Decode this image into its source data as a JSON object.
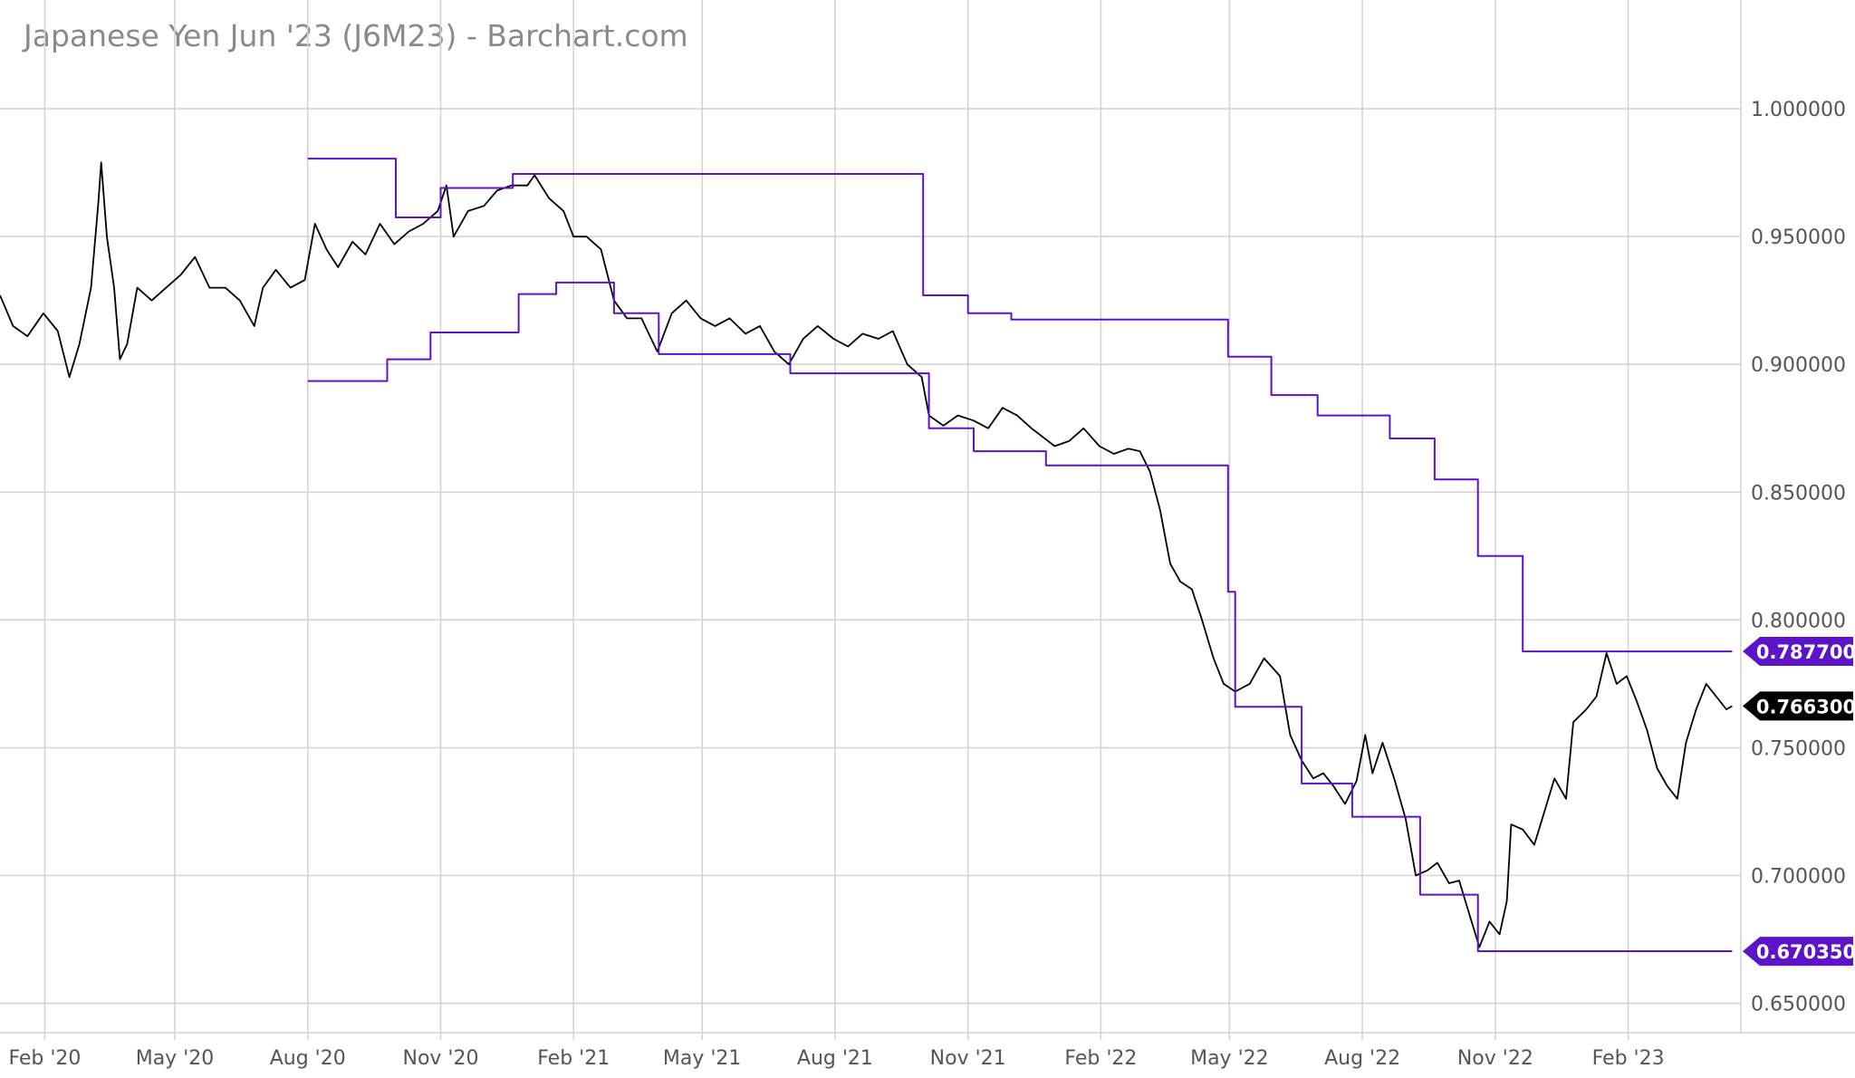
{
  "header": {
    "title": "Japanese Yen Jun '23 (J6M23) - Barchart.com"
  },
  "colors": {
    "price": "#000000",
    "channel": "#5b14c8",
    "price_tag": "#000000",
    "channel_tag": "#5b14c8",
    "grid": "#d4d4d4"
  },
  "chart_data": {
    "type": "line",
    "title": "Japanese Yen Jun '23 (J6M23) - Barchart.com",
    "xlabel": "",
    "ylabel": "",
    "ylim": [
      0.6385,
      1.0135
    ],
    "xlim": [
      "2020-01-01",
      "2023-04-20"
    ],
    "grid": true,
    "y_ticks": [
      "0.650000",
      "0.700000",
      "0.750000",
      "0.800000",
      "0.850000",
      "0.900000",
      "0.950000",
      "1.000000"
    ],
    "x_ticks": [
      {
        "label": "Feb '20",
        "date": "2020-02-01"
      },
      {
        "label": "May '20",
        "date": "2020-05-01"
      },
      {
        "label": "Aug '20",
        "date": "2020-08-01"
      },
      {
        "label": "Nov '20",
        "date": "2020-11-01"
      },
      {
        "label": "Feb '21",
        "date": "2021-02-01"
      },
      {
        "label": "May '21",
        "date": "2021-05-01"
      },
      {
        "label": "Aug '21",
        "date": "2021-08-01"
      },
      {
        "label": "Nov '21",
        "date": "2021-11-01"
      },
      {
        "label": "Feb '22",
        "date": "2022-02-01"
      },
      {
        "label": "May '22",
        "date": "2022-05-01"
      },
      {
        "label": "Aug '22",
        "date": "2022-08-01"
      },
      {
        "label": "Nov '22",
        "date": "2022-11-01"
      },
      {
        "label": "Feb '23",
        "date": "2023-02-01"
      }
    ],
    "series": [
      {
        "color": "#000000",
        "step": false,
        "points": [
          [
            "2020-01-01",
            0.927
          ],
          [
            "2020-01-10",
            0.915
          ],
          [
            "2020-01-20",
            0.911
          ],
          [
            "2020-01-31",
            0.92
          ],
          [
            "2020-02-10",
            0.913
          ],
          [
            "2020-02-18",
            0.895
          ],
          [
            "2020-02-25",
            0.908
          ],
          [
            "2020-03-04",
            0.93
          ],
          [
            "2020-03-09",
            0.963
          ],
          [
            "2020-03-11",
            0.979
          ],
          [
            "2020-03-15",
            0.95
          ],
          [
            "2020-03-20",
            0.93
          ],
          [
            "2020-03-24",
            0.902
          ],
          [
            "2020-03-29",
            0.908
          ],
          [
            "2020-04-05",
            0.93
          ],
          [
            "2020-04-15",
            0.925
          ],
          [
            "2020-04-25",
            0.93
          ],
          [
            "2020-05-05",
            0.935
          ],
          [
            "2020-05-15",
            0.942
          ],
          [
            "2020-05-25",
            0.93
          ],
          [
            "2020-06-05",
            0.93
          ],
          [
            "2020-06-15",
            0.925
          ],
          [
            "2020-06-25",
            0.915
          ],
          [
            "2020-07-01",
            0.93
          ],
          [
            "2020-07-10",
            0.937
          ],
          [
            "2020-07-20",
            0.93
          ],
          [
            "2020-07-30",
            0.933
          ],
          [
            "2020-08-06",
            0.955
          ],
          [
            "2020-08-14",
            0.945
          ],
          [
            "2020-08-22",
            0.938
          ],
          [
            "2020-09-01",
            0.948
          ],
          [
            "2020-09-10",
            0.943
          ],
          [
            "2020-09-20",
            0.955
          ],
          [
            "2020-09-30",
            0.947
          ],
          [
            "2020-10-10",
            0.952
          ],
          [
            "2020-10-20",
            0.955
          ],
          [
            "2020-10-30",
            0.96
          ],
          [
            "2020-11-05",
            0.97
          ],
          [
            "2020-11-10",
            0.95
          ],
          [
            "2020-11-20",
            0.96
          ],
          [
            "2020-12-01",
            0.962
          ],
          [
            "2020-12-10",
            0.968
          ],
          [
            "2020-12-20",
            0.97
          ],
          [
            "2020-12-31",
            0.97
          ],
          [
            "2021-01-05",
            0.974
          ],
          [
            "2021-01-15",
            0.965
          ],
          [
            "2021-01-25",
            0.96
          ],
          [
            "2021-02-01",
            0.95
          ],
          [
            "2021-02-10",
            0.95
          ],
          [
            "2021-02-20",
            0.945
          ],
          [
            "2021-03-01",
            0.925
          ],
          [
            "2021-03-10",
            0.918
          ],
          [
            "2021-03-20",
            0.918
          ],
          [
            "2021-03-31",
            0.905
          ],
          [
            "2021-04-10",
            0.92
          ],
          [
            "2021-04-20",
            0.925
          ],
          [
            "2021-04-30",
            0.918
          ],
          [
            "2021-05-10",
            0.915
          ],
          [
            "2021-05-20",
            0.918
          ],
          [
            "2021-05-31",
            0.912
          ],
          [
            "2021-06-10",
            0.915
          ],
          [
            "2021-06-20",
            0.905
          ],
          [
            "2021-06-30",
            0.9
          ],
          [
            "2021-07-10",
            0.91
          ],
          [
            "2021-07-20",
            0.915
          ],
          [
            "2021-07-31",
            0.91
          ],
          [
            "2021-08-10",
            0.907
          ],
          [
            "2021-08-20",
            0.912
          ],
          [
            "2021-08-31",
            0.91
          ],
          [
            "2021-09-10",
            0.913
          ],
          [
            "2021-09-20",
            0.9
          ],
          [
            "2021-09-30",
            0.895
          ],
          [
            "2021-10-05",
            0.88
          ],
          [
            "2021-10-15",
            0.876
          ],
          [
            "2021-10-25",
            0.88
          ],
          [
            "2021-11-05",
            0.878
          ],
          [
            "2021-11-15",
            0.875
          ],
          [
            "2021-11-25",
            0.883
          ],
          [
            "2021-12-05",
            0.88
          ],
          [
            "2021-12-15",
            0.875
          ],
          [
            "2021-12-31",
            0.868
          ],
          [
            "2022-01-10",
            0.87
          ],
          [
            "2022-01-20",
            0.875
          ],
          [
            "2022-01-31",
            0.868
          ],
          [
            "2022-02-10",
            0.865
          ],
          [
            "2022-02-20",
            0.867
          ],
          [
            "2022-02-28",
            0.866
          ],
          [
            "2022-03-07",
            0.858
          ],
          [
            "2022-03-14",
            0.843
          ],
          [
            "2022-03-21",
            0.822
          ],
          [
            "2022-03-28",
            0.815
          ],
          [
            "2022-04-05",
            0.812
          ],
          [
            "2022-04-12",
            0.8
          ],
          [
            "2022-04-20",
            0.785
          ],
          [
            "2022-04-27",
            0.775
          ],
          [
            "2022-05-05",
            0.772
          ],
          [
            "2022-05-15",
            0.775
          ],
          [
            "2022-05-25",
            0.785
          ],
          [
            "2022-06-05",
            0.778
          ],
          [
            "2022-06-12",
            0.755
          ],
          [
            "2022-06-20",
            0.745
          ],
          [
            "2022-06-28",
            0.738
          ],
          [
            "2022-07-05",
            0.74
          ],
          [
            "2022-07-12",
            0.735
          ],
          [
            "2022-07-20",
            0.728
          ],
          [
            "2022-07-28",
            0.737
          ],
          [
            "2022-08-03",
            0.755
          ],
          [
            "2022-08-08",
            0.74
          ],
          [
            "2022-08-15",
            0.752
          ],
          [
            "2022-08-23",
            0.738
          ],
          [
            "2022-08-31",
            0.722
          ],
          [
            "2022-09-07",
            0.7
          ],
          [
            "2022-09-15",
            0.702
          ],
          [
            "2022-09-22",
            0.705
          ],
          [
            "2022-09-30",
            0.697
          ],
          [
            "2022-10-07",
            0.698
          ],
          [
            "2022-10-14",
            0.685
          ],
          [
            "2022-10-21",
            0.672
          ],
          [
            "2022-10-28",
            0.682
          ],
          [
            "2022-11-04",
            0.677
          ],
          [
            "2022-11-09",
            0.69
          ],
          [
            "2022-11-12",
            0.72
          ],
          [
            "2022-11-20",
            0.718
          ],
          [
            "2022-11-28",
            0.712
          ],
          [
            "2022-12-05",
            0.725
          ],
          [
            "2022-12-12",
            0.738
          ],
          [
            "2022-12-20",
            0.73
          ],
          [
            "2022-12-25",
            0.76
          ],
          [
            "2023-01-03",
            0.765
          ],
          [
            "2023-01-10",
            0.77
          ],
          [
            "2023-01-17",
            0.787
          ],
          [
            "2023-01-24",
            0.775
          ],
          [
            "2023-01-31",
            0.778
          ],
          [
            "2023-02-07",
            0.768
          ],
          [
            "2023-02-14",
            0.757
          ],
          [
            "2023-02-21",
            0.742
          ],
          [
            "2023-02-28",
            0.735
          ],
          [
            "2023-03-07",
            0.73
          ],
          [
            "2023-03-13",
            0.752
          ],
          [
            "2023-03-20",
            0.765
          ],
          [
            "2023-03-27",
            0.775
          ],
          [
            "2023-04-03",
            0.77
          ],
          [
            "2023-04-10",
            0.765
          ],
          [
            "2023-04-14",
            0.7663
          ]
        ]
      },
      {
        "color": "#5b14c8",
        "step": true,
        "points": [
          [
            "2020-08-01",
            0.9805
          ],
          [
            "2020-10-01",
            0.9575
          ],
          [
            "2020-11-01",
            0.969
          ],
          [
            "2020-12-21",
            0.9745
          ],
          [
            "2021-10-01",
            0.927
          ],
          [
            "2021-11-01",
            0.92
          ],
          [
            "2021-12-01",
            0.9175
          ],
          [
            "2022-04-30",
            0.903
          ],
          [
            "2022-05-30",
            0.888
          ],
          [
            "2022-07-01",
            0.88
          ],
          [
            "2022-08-20",
            0.871
          ],
          [
            "2022-09-20",
            0.855
          ],
          [
            "2022-10-20",
            0.825
          ],
          [
            "2022-11-20",
            0.7877
          ],
          [
            "2023-04-14",
            0.7877
          ]
        ]
      },
      {
        "color": "#5b14c8",
        "step": true,
        "points": [
          [
            "2020-08-01",
            0.8935
          ],
          [
            "2020-09-25",
            0.902
          ],
          [
            "2020-10-25",
            0.9125
          ],
          [
            "2020-12-25",
            0.9275
          ],
          [
            "2021-01-20",
            0.932
          ],
          [
            "2021-03-01",
            0.92
          ],
          [
            "2021-04-01",
            0.904
          ],
          [
            "2021-07-01",
            0.8965
          ],
          [
            "2021-10-05",
            0.875
          ],
          [
            "2021-11-05",
            0.866
          ],
          [
            "2021-12-25",
            0.8605
          ],
          [
            "2022-04-30",
            0.811
          ],
          [
            "2022-05-05",
            0.766
          ],
          [
            "2022-06-20",
            0.736
          ],
          [
            "2022-07-25",
            0.723
          ],
          [
            "2022-09-10",
            0.6925
          ],
          [
            "2022-10-20",
            0.6704
          ],
          [
            "2023-04-14",
            0.6704
          ]
        ]
      }
    ],
    "last_values": [
      {
        "label": "0.787700",
        "value": 0.7877,
        "style": "channel"
      },
      {
        "label": "0.766300",
        "value": 0.7663,
        "style": "price"
      },
      {
        "label": "0.670350",
        "value": 0.67035,
        "style": "channel"
      }
    ]
  }
}
